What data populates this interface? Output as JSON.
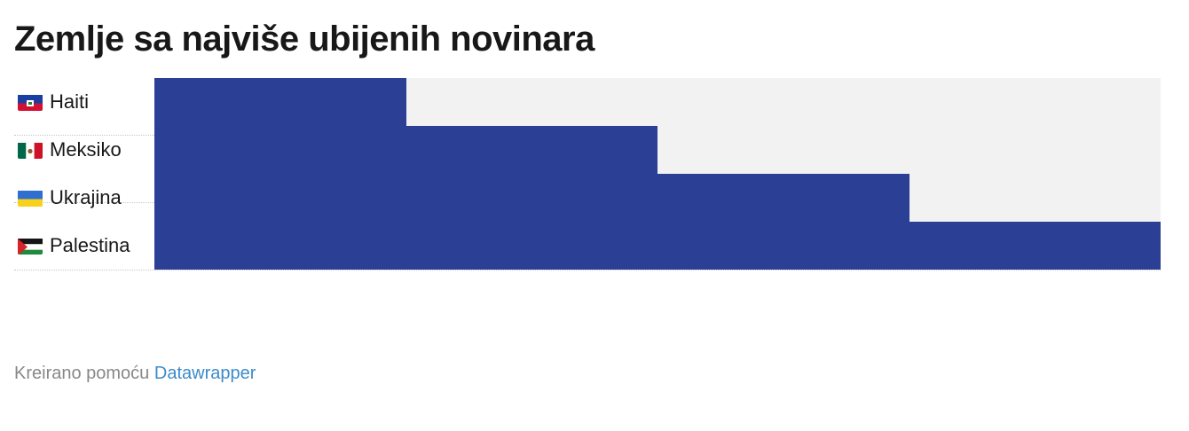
{
  "title": "Zemlje sa najviše ubijenih novinara",
  "footer": {
    "prefix": "Kreirano pomoću",
    "link": "Datawrapper"
  },
  "colors": {
    "bar": "#2b3f94",
    "track": "#f2f2f2",
    "link": "#3d8bc9"
  },
  "chart_data": {
    "type": "bar",
    "orientation": "horizontal",
    "categories": [
      "Haiti",
      "Meksiko",
      "Ukrajina",
      "Palestina"
    ],
    "flag_icons": [
      "haiti-flag-icon",
      "mexico-flag-icon",
      "ukraine-flag-icon",
      "palestine-flag-icon"
    ],
    "values": [
      1,
      2,
      3,
      4
    ],
    "xlim": [
      0,
      4
    ],
    "value_labels_shown": false,
    "axis_labels_shown": false,
    "grid": false
  }
}
